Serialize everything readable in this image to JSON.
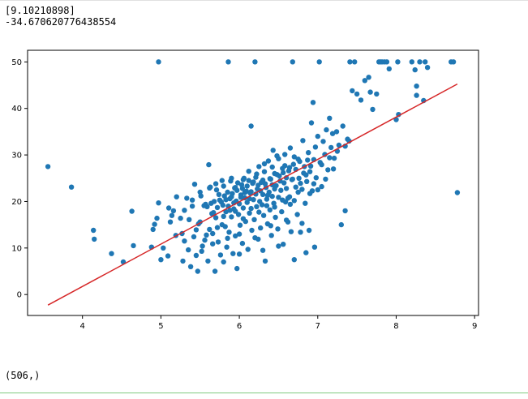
{
  "output": {
    "coef": "[9.10210898]",
    "intercept": "-34.670620776438554",
    "shape": "(506,)"
  },
  "chart_data": {
    "type": "scatter",
    "title": "",
    "xlabel": "",
    "ylabel": "",
    "xlim": [
      3.3,
      9.05
    ],
    "ylim": [
      -4.5,
      52.5
    ],
    "xticks": [
      4,
      5,
      6,
      7,
      8,
      9
    ],
    "yticks": [
      0,
      10,
      20,
      30,
      40,
      50
    ],
    "grid": false,
    "colors": {
      "points": "#1f77b4",
      "line": "#d62728"
    },
    "fit_line": {
      "slope": 9.10210898,
      "intercept": -34.670620776438554,
      "x": [
        3.56,
        8.78
      ]
    },
    "points": [
      [
        3.56,
        27.5
      ],
      [
        3.86,
        23.1
      ],
      [
        4.14,
        13.8
      ],
      [
        4.15,
        11.9
      ],
      [
        4.37,
        8.8
      ],
      [
        4.52,
        7.0
      ],
      [
        4.63,
        17.9
      ],
      [
        4.65,
        10.5
      ],
      [
        4.88,
        10.2
      ],
      [
        4.9,
        14.0
      ],
      [
        4.92,
        15.1
      ],
      [
        4.95,
        16.4
      ],
      [
        4.97,
        19.7
      ],
      [
        4.97,
        50.0
      ],
      [
        5.0,
        7.5
      ],
      [
        5.03,
        10.0
      ],
      [
        5.09,
        8.3
      ],
      [
        5.12,
        15.6
      ],
      [
        5.14,
        17.0
      ],
      [
        5.16,
        18.0
      ],
      [
        5.19,
        12.7
      ],
      [
        5.27,
        13.1
      ],
      [
        5.28,
        7.2
      ],
      [
        5.3,
        11.5
      ],
      [
        5.33,
        20.7
      ],
      [
        5.36,
        16.1
      ],
      [
        5.38,
        6.0
      ],
      [
        5.4,
        19.0
      ],
      [
        5.42,
        12.4
      ],
      [
        5.43,
        23.7
      ],
      [
        5.45,
        8.4
      ],
      [
        5.47,
        5.0
      ],
      [
        5.48,
        15.2
      ],
      [
        5.5,
        15.6
      ],
      [
        5.51,
        21.2
      ],
      [
        5.53,
        10.4
      ],
      [
        5.56,
        11.7
      ],
      [
        5.57,
        19.4
      ],
      [
        5.59,
        18.9
      ],
      [
        5.6,
        7.2
      ],
      [
        5.61,
        27.9
      ],
      [
        5.62,
        14.0
      ],
      [
        5.63,
        23.1
      ],
      [
        5.64,
        19.6
      ],
      [
        5.65,
        17.4
      ],
      [
        5.66,
        13.1
      ],
      [
        5.68,
        20.0
      ],
      [
        5.69,
        5.0
      ],
      [
        5.7,
        16.5
      ],
      [
        5.71,
        22.5
      ],
      [
        5.72,
        18.7
      ],
      [
        5.73,
        11.3
      ],
      [
        5.75,
        20.3
      ],
      [
        5.76,
        8.5
      ],
      [
        5.78,
        15.0
      ],
      [
        5.79,
        19.2
      ],
      [
        5.8,
        23.3
      ],
      [
        5.81,
        21.2
      ],
      [
        5.82,
        14.6
      ],
      [
        5.83,
        17.8
      ],
      [
        5.84,
        10.2
      ],
      [
        5.85,
        22.0
      ],
      [
        5.86,
        19.0
      ],
      [
        5.86,
        50.0
      ],
      [
        5.87,
        13.4
      ],
      [
        5.88,
        20.6
      ],
      [
        5.89,
        24.4
      ],
      [
        5.9,
        16.7
      ],
      [
        5.91,
        21.7
      ],
      [
        5.92,
        8.8
      ],
      [
        5.93,
        18.4
      ],
      [
        5.94,
        22.9
      ],
      [
        5.95,
        12.6
      ],
      [
        5.96,
        20.1
      ],
      [
        5.97,
        5.6
      ],
      [
        5.98,
        24.0
      ],
      [
        5.99,
        17.2
      ],
      [
        6.0,
        19.5
      ],
      [
        6.01,
        14.9
      ],
      [
        6.02,
        21.4
      ],
      [
        6.03,
        23.6
      ],
      [
        6.04,
        11.0
      ],
      [
        6.05,
        18.6
      ],
      [
        6.06,
        25.0
      ],
      [
        6.07,
        20.8
      ],
      [
        6.08,
        15.7
      ],
      [
        6.09,
        22.2
      ],
      [
        6.1,
        19.8
      ],
      [
        6.11,
        9.7
      ],
      [
        6.12,
        24.5
      ],
      [
        6.13,
        17.5
      ],
      [
        6.14,
        21.8
      ],
      [
        6.15,
        36.2
      ],
      [
        6.16,
        13.8
      ],
      [
        6.17,
        23.9
      ],
      [
        6.18,
        20.4
      ],
      [
        6.19,
        16.1
      ],
      [
        6.2,
        50.0
      ],
      [
        6.21,
        25.2
      ],
      [
        6.22,
        18.9
      ],
      [
        6.23,
        22.7
      ],
      [
        6.24,
        11.9
      ],
      [
        6.25,
        27.5
      ],
      [
        6.26,
        20.0
      ],
      [
        6.27,
        14.3
      ],
      [
        6.28,
        24.1
      ],
      [
        6.29,
        19.3
      ],
      [
        6.3,
        21.5
      ],
      [
        6.31,
        17.0
      ],
      [
        6.32,
        26.4
      ],
      [
        6.33,
        7.2
      ],
      [
        6.34,
        23.0
      ],
      [
        6.35,
        20.5
      ],
      [
        6.36,
        15.2
      ],
      [
        6.37,
        28.7
      ],
      [
        6.38,
        22.0
      ],
      [
        6.39,
        18.2
      ],
      [
        6.4,
        24.8
      ],
      [
        6.41,
        12.7
      ],
      [
        6.42,
        21.1
      ],
      [
        6.43,
        31.0
      ],
      [
        6.44,
        19.6
      ],
      [
        6.45,
        26.0
      ],
      [
        6.46,
        16.6
      ],
      [
        6.47,
        23.4
      ],
      [
        6.48,
        29.8
      ],
      [
        6.49,
        14.1
      ],
      [
        6.5,
        20.9
      ],
      [
        6.51,
        25.5
      ],
      [
        6.53,
        22.4
      ],
      [
        6.54,
        17.8
      ],
      [
        6.55,
        27.1
      ],
      [
        6.56,
        10.8
      ],
      [
        6.57,
        24.0
      ],
      [
        6.58,
        30.1
      ],
      [
        6.59,
        19.9
      ],
      [
        6.6,
        22.8
      ],
      [
        6.62,
        15.6
      ],
      [
        6.63,
        26.6
      ],
      [
        6.64,
        21.0
      ],
      [
        6.65,
        31.5
      ],
      [
        6.66,
        13.5
      ],
      [
        6.67,
        24.7
      ],
      [
        6.68,
        50.0
      ],
      [
        6.69,
        28.0
      ],
      [
        6.7,
        20.2
      ],
      [
        6.72,
        23.1
      ],
      [
        6.74,
        17.2
      ],
      [
        6.75,
        29.1
      ],
      [
        6.76,
        25.0
      ],
      [
        6.78,
        13.4
      ],
      [
        6.8,
        22.6
      ],
      [
        6.81,
        33.1
      ],
      [
        6.83,
        27.5
      ],
      [
        6.84,
        19.6
      ],
      [
        6.86,
        24.3
      ],
      [
        6.88,
        30.5
      ],
      [
        6.89,
        13.8
      ],
      [
        6.9,
        26.4
      ],
      [
        6.92,
        36.9
      ],
      [
        6.93,
        22.3
      ],
      [
        6.94,
        41.3
      ],
      [
        6.95,
        29.0
      ],
      [
        6.96,
        10.2
      ],
      [
        6.97,
        31.7
      ],
      [
        6.98,
        25.1
      ],
      [
        7.0,
        34.0
      ],
      [
        7.02,
        50.0
      ],
      [
        7.03,
        28.4
      ],
      [
        7.05,
        23.2
      ],
      [
        7.07,
        32.9
      ],
      [
        7.09,
        30.1
      ],
      [
        7.11,
        35.4
      ],
      [
        7.13,
        26.8
      ],
      [
        7.15,
        37.9
      ],
      [
        7.17,
        31.6
      ],
      [
        7.19,
        34.6
      ],
      [
        7.21,
        29.3
      ],
      [
        7.24,
        35.0
      ],
      [
        7.27,
        32.1
      ],
      [
        7.3,
        15.0
      ],
      [
        7.32,
        36.2
      ],
      [
        7.35,
        18.0
      ],
      [
        7.38,
        33.4
      ],
      [
        7.41,
        50.0
      ],
      [
        7.44,
        43.8
      ],
      [
        7.47,
        50.0
      ],
      [
        7.5,
        43.1
      ],
      [
        7.55,
        41.8
      ],
      [
        7.6,
        46.0
      ],
      [
        7.65,
        46.7
      ],
      [
        7.67,
        43.5
      ],
      [
        7.7,
        39.8
      ],
      [
        7.75,
        43.1
      ],
      [
        7.78,
        50.0
      ],
      [
        7.8,
        50.0
      ],
      [
        7.82,
        50.0
      ],
      [
        7.85,
        50.0
      ],
      [
        7.88,
        50.0
      ],
      [
        7.91,
        48.5
      ],
      [
        8.0,
        37.6
      ],
      [
        8.02,
        50.0
      ],
      [
        8.03,
        38.7
      ],
      [
        8.2,
        50.0
      ],
      [
        8.24,
        48.3
      ],
      [
        8.26,
        44.8
      ],
      [
        8.26,
        42.8
      ],
      [
        8.3,
        50.0
      ],
      [
        8.35,
        41.7
      ],
      [
        8.37,
        50.0
      ],
      [
        8.4,
        48.8
      ],
      [
        8.7,
        50.0
      ],
      [
        8.73,
        50.0
      ],
      [
        8.78,
        21.9
      ],
      [
        5.55,
        19.1
      ],
      [
        5.67,
        17.6
      ],
      [
        5.74,
        21.5
      ],
      [
        5.77,
        19.9
      ],
      [
        5.83,
        20.4
      ],
      [
        5.9,
        21.0
      ],
      [
        5.93,
        19.7
      ],
      [
        5.97,
        22.4
      ],
      [
        6.02,
        20.9
      ],
      [
        6.04,
        22.8
      ],
      [
        6.07,
        21.9
      ],
      [
        6.1,
        23.3
      ],
      [
        6.13,
        20.6
      ],
      [
        6.15,
        22.1
      ],
      [
        6.18,
        24.2
      ],
      [
        6.21,
        21.6
      ],
      [
        6.24,
        23.5
      ],
      [
        6.27,
        22.3
      ],
      [
        6.3,
        24.6
      ],
      [
        6.33,
        23.8
      ],
      [
        6.36,
        21.3
      ],
      [
        6.39,
        24.9
      ],
      [
        6.42,
        23.6
      ],
      [
        6.45,
        22.7
      ],
      [
        6.48,
        25.8
      ],
      [
        6.52,
        24.4
      ],
      [
        6.56,
        26.2
      ],
      [
        6.6,
        25.1
      ],
      [
        6.64,
        27.3
      ],
      [
        6.68,
        24.8
      ],
      [
        6.72,
        26.9
      ],
      [
        6.77,
        28.6
      ],
      [
        6.82,
        26.1
      ],
      [
        6.87,
        28.9
      ],
      [
        6.91,
        27.6
      ],
      [
        5.8,
        16.8
      ],
      [
        5.88,
        18.1
      ],
      [
        5.95,
        17.9
      ],
      [
        6.05,
        16.3
      ],
      [
        6.15,
        18.5
      ],
      [
        6.25,
        17.7
      ],
      [
        6.35,
        19.1
      ],
      [
        6.45,
        18.8
      ],
      [
        6.55,
        20.3
      ],
      [
        6.65,
        19.4
      ],
      [
        5.45,
        13.9
      ],
      [
        5.58,
        12.8
      ],
      [
        5.72,
        14.4
      ],
      [
        5.85,
        12.1
      ],
      [
        6.0,
        13.0
      ],
      [
        6.2,
        12.2
      ],
      [
        6.4,
        14.8
      ],
      [
        6.6,
        16.0
      ],
      [
        6.8,
        15.3
      ],
      [
        5.25,
        16.4
      ],
      [
        5.35,
        9.6
      ],
      [
        5.52,
        9.3
      ],
      [
        5.66,
        10.9
      ],
      [
        5.8,
        7.0
      ],
      [
        6.0,
        8.7
      ],
      [
        6.3,
        9.5
      ],
      [
        6.5,
        10.4
      ],
      [
        6.7,
        7.5
      ],
      [
        6.85,
        9.0
      ],
      [
        7.0,
        22.5
      ],
      [
        7.1,
        24.8
      ],
      [
        7.2,
        27.0
      ],
      [
        6.95,
        23.8
      ],
      [
        7.05,
        27.9
      ],
      [
        7.15,
        29.4
      ],
      [
        7.25,
        30.8
      ],
      [
        7.35,
        31.9
      ],
      [
        7.4,
        33.0
      ],
      [
        6.9,
        21.7
      ],
      [
        6.75,
        22.0
      ],
      [
        6.62,
        20.7
      ],
      [
        6.85,
        25.7
      ],
      [
        6.78,
        23.9
      ],
      [
        6.58,
        27.7
      ],
      [
        6.7,
        29.6
      ],
      [
        5.9,
        25.0
      ],
      [
        5.95,
        23.0
      ],
      [
        6.05,
        24.7
      ],
      [
        6.12,
        26.5
      ],
      [
        6.22,
        25.9
      ],
      [
        6.32,
        28.1
      ],
      [
        6.42,
        27.4
      ],
      [
        6.5,
        29.2
      ],
      [
        5.62,
        22.9
      ],
      [
        5.7,
        23.8
      ],
      [
        5.78,
        24.5
      ],
      [
        5.5,
        22.0
      ],
      [
        5.4,
        20.3
      ],
      [
        5.3,
        18.1
      ],
      [
        5.2,
        21.0
      ],
      [
        5.1,
        18.6
      ]
    ]
  }
}
